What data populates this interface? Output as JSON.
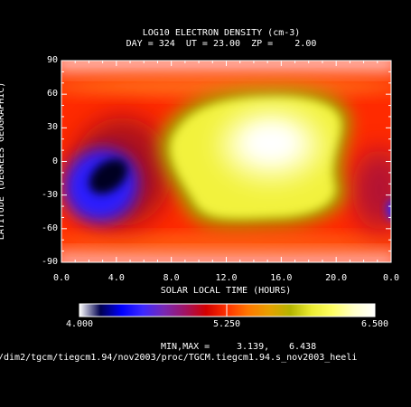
{
  "chart_data": {
    "type": "heatmap",
    "title": "LOG10 ELECTRON DENSITY (cm-3)",
    "subtitle": "DAY = 324  UT = 23.00  ZP =    2.00",
    "xlabel": "SOLAR LOCAL TIME (HOURS)",
    "ylabel": "LATITUDE (DEGREES GEOGRAPHIC)",
    "xlim": [
      0.0,
      24.0
    ],
    "ylim": [
      -90,
      90
    ],
    "x_ticks": [
      "0.0",
      "4.0",
      "8.0",
      "12.0",
      "16.0",
      "20.0",
      "0.0"
    ],
    "y_ticks": [
      "90",
      "60",
      "30",
      "0",
      "-30",
      "-60",
      "-90"
    ],
    "colorbar": {
      "min_label": "4.000",
      "mid_label": "5.250",
      "max_label": "6.500",
      "min": 4.0,
      "max": 6.5,
      "colors": [
        "#ffffff",
        "#000050",
        "#0000ff",
        "#3c28ff",
        "#7828b4",
        "#a01464",
        "#d20000",
        "#ff3200",
        "#ff7800",
        "#e6a000",
        "#b4b400",
        "#ebeb32",
        "#ffff64",
        "#ffffc8",
        "#ffffff"
      ]
    },
    "features": [
      {
        "name": "dayside maximum",
        "lt": 13.5,
        "lat": 15,
        "value": 6.4
      },
      {
        "name": "nightside minimum",
        "lt": 3.2,
        "lat": -5,
        "value": 3.2
      }
    ],
    "minmax_label": "MIN,MAX =",
    "min_value": "3.139,",
    "max_value": "6.438"
  },
  "footer": {
    "path": "/dim2/tgcm/tiegcm1.94/nov2003/proc/TGCM.tiegcm1.94.s_nov2003_heeli"
  }
}
